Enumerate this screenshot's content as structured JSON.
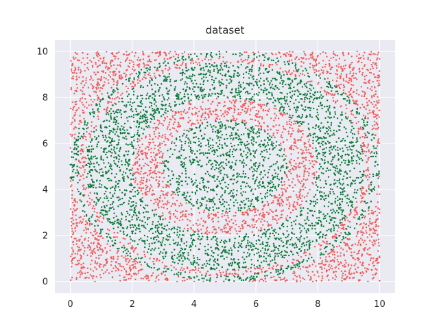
{
  "chart_data": {
    "type": "scatter",
    "title": "dataset",
    "xlabel": "",
    "ylabel": "",
    "xlim": [
      -0.5,
      10.5
    ],
    "ylim": [
      -0.5,
      10.5
    ],
    "x_ticks": [
      "0",
      "2",
      "4",
      "6",
      "8",
      "10"
    ],
    "y_ticks": [
      "0",
      "2",
      "4",
      "6",
      "8",
      "10"
    ],
    "grid": true,
    "legend": "none",
    "background": "#eaeaf2",
    "center": [
      5,
      5
    ],
    "regions": [
      {
        "class": "red",
        "color": "#f05a5a",
        "r_min": 0,
        "r_max": 0,
        "note_shape": "unit-square fill"
      },
      {
        "class": "green",
        "color": "#0b7a3a",
        "shape": "ellipse",
        "rx": 2.0,
        "ry": 2.0
      },
      {
        "class": "green",
        "color": "#0b7a3a",
        "shape": "ellipse-ring",
        "rx_in": 3.0,
        "ry_in": 3.0,
        "rx_out": 4.5,
        "ry_out": 4.5
      },
      {
        "class": "green",
        "color": "#0b7a3a",
        "shape": "ellipse-ring",
        "rx_in": 4.75,
        "ry_in": 4.75,
        "rx_out": 5.0,
        "ry_out": 5.0
      }
    ],
    "x_range": [
      0,
      10
    ],
    "y_range": [
      0,
      10
    ]
  }
}
